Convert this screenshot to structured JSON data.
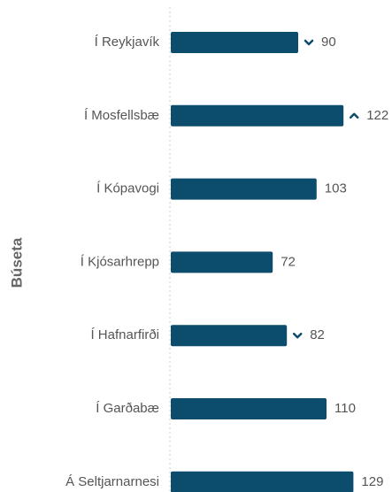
{
  "chart_data": {
    "type": "bar",
    "orientation": "horizontal",
    "ylabel": "Búseta",
    "categories": [
      "Í Reykjavík",
      "Í Mosfellsbæ",
      "Í Kópavogi",
      "Í Kjósarhrepp",
      "Í Hafnarfirði",
      "Í Garðabæ",
      "Á Seltjarnarnesi"
    ],
    "values": [
      90,
      122,
      103,
      72,
      82,
      110,
      129
    ],
    "trend": [
      "down",
      "up",
      null,
      null,
      "down",
      null,
      null
    ],
    "color": "#0c4c6c"
  }
}
